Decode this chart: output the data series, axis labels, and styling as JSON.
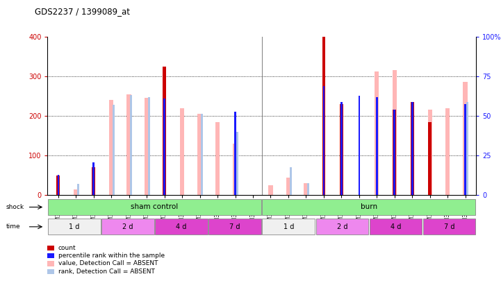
{
  "title": "GDS2237 / 1399089_at",
  "samples": [
    "GSM32414",
    "GSM32415",
    "GSM32416",
    "GSM32423",
    "GSM32424",
    "GSM32425",
    "GSM32429",
    "GSM32430",
    "GSM32431",
    "GSM32435",
    "GSM32436",
    "GSM32437",
    "GSM32417",
    "GSM32418",
    "GSM32419",
    "GSM32420",
    "GSM32421",
    "GSM32422",
    "GSM32426",
    "GSM32427",
    "GSM32428",
    "GSM32432",
    "GSM32433",
    "GSM32434"
  ],
  "count": [
    50,
    0,
    70,
    0,
    0,
    0,
    325,
    0,
    0,
    0,
    0,
    0,
    0,
    0,
    0,
    400,
    230,
    0,
    0,
    215,
    235,
    185,
    0,
    0
  ],
  "percentile": [
    52,
    null,
    83,
    null,
    null,
    null,
    243,
    null,
    null,
    null,
    210,
    null,
    null,
    null,
    null,
    275,
    235,
    250,
    248,
    215,
    235,
    null,
    null,
    230
  ],
  "value_absent": [
    0,
    15,
    0,
    240,
    255,
    245,
    0,
    220,
    205,
    185,
    130,
    0,
    25,
    45,
    30,
    0,
    0,
    0,
    312,
    315,
    0,
    215,
    220,
    285
  ],
  "rank_absent": [
    0,
    28,
    0,
    228,
    252,
    248,
    0,
    0,
    205,
    0,
    160,
    0,
    0,
    70,
    30,
    0,
    0,
    0,
    0,
    0,
    0,
    0,
    0,
    235
  ],
  "ylim": [
    0,
    400
  ],
  "y2lim": [
    0,
    100
  ],
  "yticks": [
    0,
    100,
    200,
    300,
    400
  ],
  "y2ticks": [
    0,
    25,
    50,
    75,
    100
  ],
  "color_count": "#cc0000",
  "color_percentile": "#1a1aff",
  "color_value_absent": "#ffb6b6",
  "color_rank_absent": "#aec6e8",
  "shock_sham_color": "#90ee90",
  "shock_burn_color": "#90ee90",
  "time_colors": [
    "#ffffff",
    "#ff88ff",
    "#ff44cc",
    "#ff44cc",
    "#ffffff",
    "#ff88ff",
    "#ff44cc",
    "#ff44cc"
  ],
  "time_labels": [
    "1 d",
    "2 d",
    "4 d",
    "7 d",
    "1 d",
    "2 d",
    "4 d",
    "7 d"
  ],
  "legend_items": [
    {
      "label": "count",
      "color": "#cc0000"
    },
    {
      "label": "percentile rank within the sample",
      "color": "#1a1aff"
    },
    {
      "label": "value, Detection Call = ABSENT",
      "color": "#ffb6b6"
    },
    {
      "label": "rank, Detection Call = ABSENT",
      "color": "#aec6e8"
    }
  ]
}
